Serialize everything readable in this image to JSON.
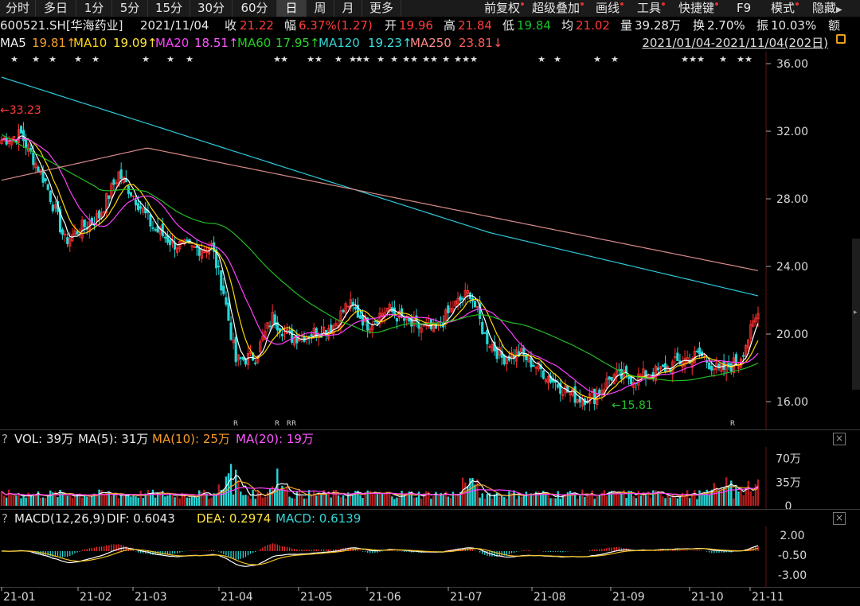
{
  "toolbar": {
    "periods": [
      {
        "label": "分时",
        "active": false
      },
      {
        "label": "多日",
        "active": false
      },
      {
        "label": "1分",
        "active": false
      },
      {
        "label": "5分",
        "active": false
      },
      {
        "label": "15分",
        "active": false
      },
      {
        "label": "30分",
        "active": false
      },
      {
        "label": "60分",
        "active": false
      },
      {
        "label": "日",
        "active": true
      },
      {
        "label": "周",
        "active": false
      },
      {
        "label": "月",
        "active": false
      },
      {
        "label": "更多",
        "active": false
      }
    ],
    "right": [
      {
        "label": "前复权"
      },
      {
        "label": "超级叠加"
      },
      {
        "label": "画线"
      },
      {
        "label": "工具"
      },
      {
        "label": "快捷键"
      },
      {
        "label": "F9"
      },
      {
        "label": "模式"
      },
      {
        "label": "隐藏"
      }
    ]
  },
  "info": {
    "code": "600521.SH[华海药业]",
    "date": "2021/11/04",
    "close_label": "收",
    "close": "21.22",
    "change_label": "幅",
    "change": "6.37%(1.27)",
    "open_label": "开",
    "open": "19.96",
    "high_label": "高",
    "high": "21.84",
    "low_label": "低",
    "low": "19.84",
    "avg_label": "均",
    "avg": "21.02",
    "vol_label": "量",
    "vol": "39.28万",
    "turnover_label": "换",
    "turnover": "2.70%",
    "amp_label": "振",
    "amp": "10.03%",
    "amount_label": "额"
  },
  "ma": {
    "ma5_label": "MA5",
    "ma5": "19.81↑",
    "ma10_label": "MA10",
    "ma10": "19.09↑",
    "ma20_label": "MA20",
    "ma20": "18.51↑",
    "ma60_label": "MA60",
    "ma60": "17.95↑",
    "ma120_label": "MA120",
    "ma120": "19.23↑",
    "ma250_label": "MA250",
    "ma250": "23.81↓",
    "date_range": "2021/01/04-2021/11/04(202日)"
  },
  "price_axis": [
    "36.00",
    "32.00",
    "28.00",
    "24.00",
    "20.00",
    "16.00"
  ],
  "annotations": {
    "high": "←33.23",
    "low": "←15.81"
  },
  "vol_panel": {
    "q": "?",
    "title": "VOL: 39万",
    "ma5": "MA(5): 31万",
    "ma10": "MA(10): 25万",
    "ma20": "MA(20): 19万",
    "axis": [
      "70万",
      "35万",
      "0"
    ]
  },
  "macd_panel": {
    "q": "?",
    "title": "MACD(12,26,9)",
    "dif": "DIF: 0.6043",
    "dea": "DEA: 0.2974",
    "macd": "MACD: 0.6139",
    "axis": [
      "2.00",
      "-0.50",
      "-3.00"
    ]
  },
  "x_axis": [
    "21-01",
    "21-02",
    "21-03",
    "21-04",
    "21-05",
    "21-06",
    "21-07",
    "21-08",
    "21-09",
    "21-10",
    "21-11"
  ],
  "r_marks": [
    "R",
    "R",
    "RR",
    "R"
  ],
  "close_icon": "×",
  "colors": {
    "up": "#ff3030",
    "down": "#27d6d6",
    "ma5": "#ffffff",
    "ma10": "#ffd700",
    "ma20": "#ff40ff",
    "ma60": "#22bb22",
    "ma120": "#2ec8d8",
    "ma250": "#d88a8a"
  }
}
